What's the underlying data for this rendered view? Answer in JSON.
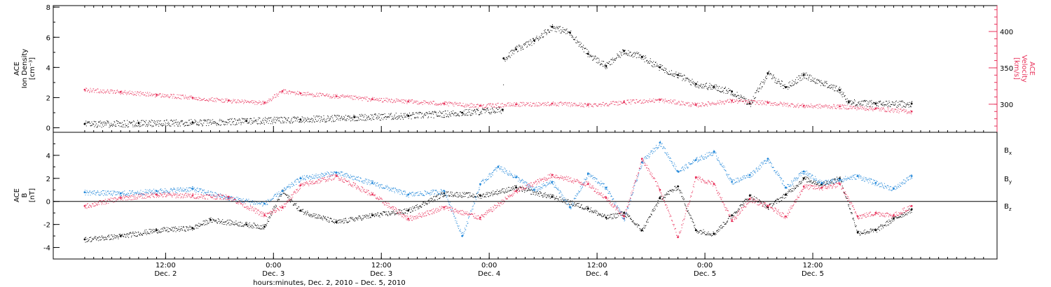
{
  "chart_data": [
    {
      "type": "scatter",
      "panel": "ion-density-velocity",
      "ylabel_lines": [
        "ACE",
        "Ion Density",
        "[cm⁻³]"
      ],
      "y2label_lines": [
        "ACE",
        "Velocity",
        "[km/s]"
      ],
      "ylim": [
        -0.3,
        8.1
      ],
      "y_ticks": [
        0,
        2,
        4,
        6,
        8
      ],
      "y2lim": [
        261.4,
        435.6
      ],
      "y2_ticks": [
        300,
        350,
        400
      ],
      "series": [
        {
          "name": "Ion Density",
          "axis": "left",
          "color": "#000000",
          "x": [
            0,
            6,
            12,
            18,
            24,
            30,
            36,
            42,
            46.5,
            46.6,
            48,
            50,
            52,
            54,
            56,
            58,
            60,
            62,
            64,
            66,
            68,
            70,
            72,
            74,
            76,
            78,
            80,
            84,
            85,
            88,
            92
          ],
          "y": [
            0.25,
            0.3,
            0.35,
            0.45,
            0.55,
            0.7,
            0.8,
            1.0,
            1.2,
            4.6,
            5.2,
            5.8,
            6.7,
            6.3,
            4.9,
            4.1,
            5.1,
            4.7,
            4.0,
            3.5,
            2.9,
            2.7,
            2.4,
            1.6,
            3.6,
            2.7,
            3.5,
            2.5,
            1.7,
            1.6,
            1.6
          ]
        },
        {
          "name": "Velocity",
          "axis": "right",
          "color": "#e8315a",
          "x": [
            0,
            4,
            8,
            12,
            16,
            20,
            22,
            24,
            28,
            32,
            36,
            40,
            44,
            48,
            52,
            56,
            60,
            64,
            68,
            72,
            76,
            80,
            84,
            88,
            92
          ],
          "y": [
            320,
            317,
            313,
            309,
            305,
            302,
            318,
            315,
            311,
            307,
            304,
            301,
            298,
            300,
            301,
            299,
            303,
            306,
            299,
            305,
            302,
            298,
            297,
            294,
            290
          ]
        }
      ]
    },
    {
      "type": "scatter",
      "panel": "magnetic-field",
      "ylabel_lines": [
        "ACE",
        "B",
        "[nT]"
      ],
      "ylim": [
        -5.0,
        6.0
      ],
      "y_ticks": [
        -4,
        -2,
        0,
        2,
        4
      ],
      "zero_line": true,
      "series": [
        {
          "name": "B",
          "subscript": "x",
          "color": "#000000",
          "x": [
            0,
            4,
            8,
            12,
            14,
            18,
            20,
            22,
            24,
            28,
            32,
            36,
            40,
            44,
            48,
            52,
            56,
            58,
            60,
            62,
            64,
            66,
            68,
            70,
            72,
            74,
            76,
            78,
            80,
            82,
            84,
            86,
            88,
            90,
            92
          ],
          "y": [
            -3.3,
            -3.0,
            -2.5,
            -2.3,
            -1.6,
            -2.0,
            -2.2,
            0.9,
            -0.8,
            -1.8,
            -1.2,
            -0.8,
            0.7,
            0.5,
            1.2,
            0.4,
            -0.6,
            -1.4,
            -1.0,
            -2.5,
            0.3,
            1.3,
            -2.5,
            -2.8,
            -1.2,
            0.5,
            -0.5,
            0.6,
            2.0,
            1.5,
            2.0,
            -2.7,
            -2.5,
            -1.5,
            -0.7
          ]
        },
        {
          "name": "B",
          "subscript": "y",
          "color": "#1f86d9",
          "x": [
            0,
            4,
            8,
            12,
            16,
            20,
            22,
            24,
            28,
            32,
            36,
            40,
            42,
            44,
            46,
            48,
            50,
            52,
            54,
            56,
            58,
            60,
            62,
            64,
            66,
            68,
            70,
            72,
            74,
            76,
            78,
            80,
            82,
            84,
            86,
            88,
            90,
            92
          ],
          "y": [
            0.8,
            0.7,
            0.9,
            1.1,
            0.3,
            -0.2,
            0.9,
            2.0,
            2.5,
            1.6,
            0.6,
            0.9,
            -3.0,
            1.5,
            3.0,
            2.1,
            1.0,
            1.7,
            -0.5,
            2.4,
            1.2,
            -1.5,
            3.4,
            5.1,
            2.6,
            3.6,
            4.3,
            1.7,
            2.3,
            3.7,
            1.2,
            2.6,
            1.6,
            1.9,
            2.2,
            1.6,
            1.1,
            2.2
          ]
        },
        {
          "name": "B",
          "subscript": "z",
          "color": "#e8315a",
          "x": [
            0,
            4,
            8,
            12,
            16,
            20,
            22,
            24,
            28,
            32,
            36,
            40,
            44,
            48,
            52,
            56,
            58,
            60,
            62,
            64,
            66,
            68,
            70,
            72,
            74,
            76,
            78,
            80,
            82,
            84,
            86,
            88,
            90,
            92
          ],
          "y": [
            -0.4,
            0.3,
            0.6,
            0.5,
            0.4,
            -1.2,
            -0.5,
            1.4,
            2.2,
            0.6,
            -1.5,
            -0.5,
            -1.4,
            0.9,
            2.3,
            1.5,
            0.3,
            -1.3,
            3.7,
            1.0,
            -3.1,
            2.1,
            1.5,
            -1.7,
            0.2,
            -0.4,
            -1.3,
            1.3,
            1.2,
            1.5,
            -1.3,
            -1.0,
            -1.2,
            -0.4
          ]
        }
      ]
    }
  ],
  "x_axis": {
    "xlim": [
      -3.5,
      101.5
    ],
    "tick_labels": [
      {
        "x": 9,
        "time": "12:00",
        "date": "Dec. 2"
      },
      {
        "x": 21,
        "time": "0:00",
        "date": "Dec. 3"
      },
      {
        "x": 33,
        "time": "12:00",
        "date": "Dec. 3"
      },
      {
        "x": 45,
        "time": "0:00",
        "date": "Dec. 4"
      },
      {
        "x": 57,
        "time": "12:00",
        "date": "Dec. 4"
      },
      {
        "x": 69,
        "time": "0:00",
        "date": "Dec. 5"
      },
      {
        "x": 81,
        "time": "12:00",
        "date": "Dec. 5"
      }
    ],
    "xlabel": "hours:minutes, Dec.  2, 2010 – Dec.  5, 2010"
  }
}
